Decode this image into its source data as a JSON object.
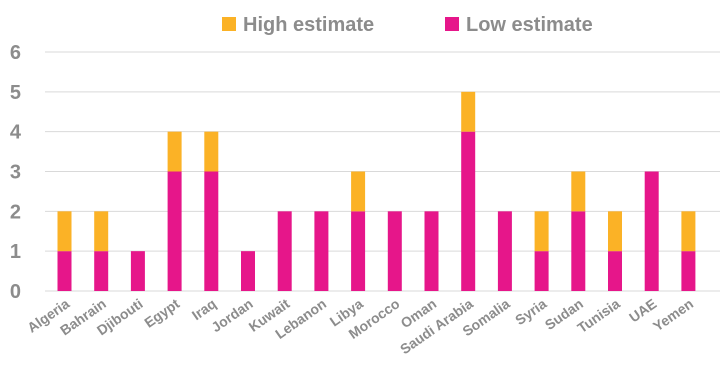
{
  "chart_data": {
    "type": "bar",
    "stacked": true,
    "categories": [
      "Algeria",
      "Bahrain",
      "Djibouti",
      "Egypt",
      "Iraq",
      "Jordan",
      "Kuwait",
      "Lebanon",
      "Libya",
      "Morocco",
      "Oman",
      "Saudi Arabia",
      "Somalia",
      "Syria",
      "Sudan",
      "Tunisia",
      "UAE",
      "Yemen"
    ],
    "series": [
      {
        "name": "Low estimate",
        "color": "#e6168a",
        "values": [
          1,
          1,
          1,
          3,
          3,
          1,
          2,
          2,
          2,
          2,
          2,
          4,
          2,
          1,
          2,
          1,
          3,
          1
        ]
      },
      {
        "name": "High estimate",
        "color": "#fbb226",
        "values": [
          1,
          1,
          0,
          1,
          1,
          0,
          0,
          0,
          1,
          0,
          0,
          1,
          0,
          1,
          1,
          1,
          0,
          1
        ]
      }
    ],
    "legend_order": [
      "High estimate",
      "Low estimate"
    ],
    "legend_position": "top",
    "ylim": [
      0,
      6
    ],
    "yticks": [
      "0",
      "1",
      "2",
      "3",
      "4",
      "5",
      "6"
    ],
    "grid": true,
    "grid_color": "#d9d9d9",
    "title": "",
    "xlabel": "",
    "ylabel": ""
  }
}
